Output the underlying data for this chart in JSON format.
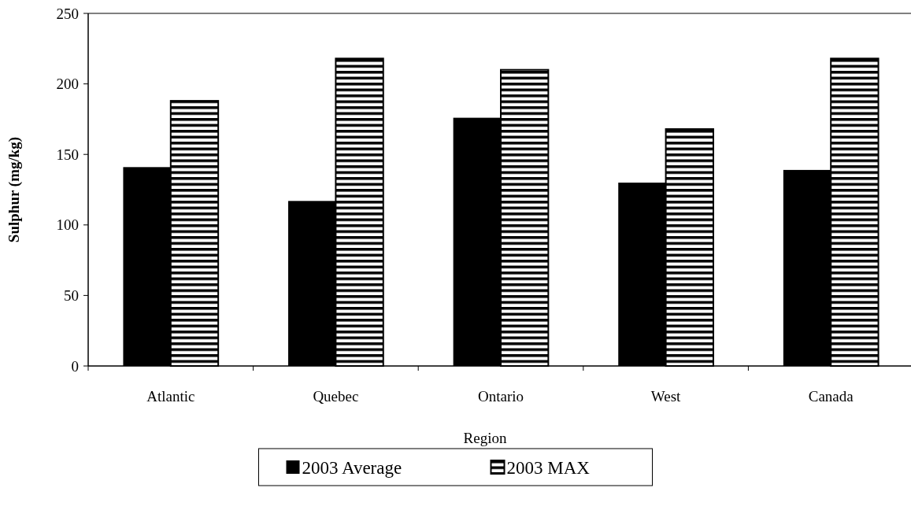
{
  "chart_data": {
    "type": "bar",
    "xlabel": "Region",
    "ylabel": "Sulphur (mg/kg)",
    "categories": [
      "Atlantic",
      "Quebec",
      "Ontario",
      "West",
      "Canada"
    ],
    "series": [
      {
        "name": "2003 Average",
        "color": "#000000",
        "values": [
          141,
          117,
          176,
          130,
          139
        ]
      },
      {
        "name": "2003 MAX",
        "color": "#000000",
        "values": [
          188,
          218,
          210,
          168,
          218
        ]
      }
    ],
    "ylim": [
      0,
      250
    ],
    "yticks": [
      0,
      50,
      100,
      150,
      200,
      250
    ],
    "legend": "bottom",
    "grid": false
  }
}
